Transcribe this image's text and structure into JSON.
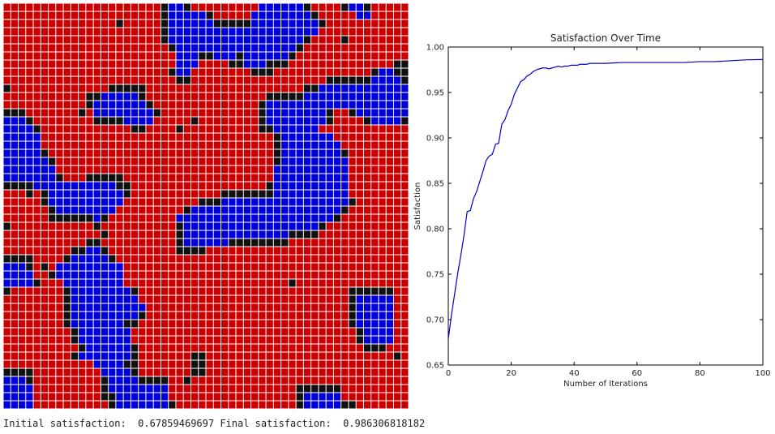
{
  "colors": {
    "red": "#cc0000",
    "blue": "#0000dd",
    "black": "#111111",
    "grid_line": "#ffffff",
    "line": "#0000cc"
  },
  "grid": {
    "rows": [
      "RRRRRRRRRRRRRRRRRRRRRKBBKRRRRRRRRRBBBBBBKRRRRKBBKRRRRR",
      "RRRRRRRRRRRRRRRRRRRRRKBBBBBKRRRRRBBBBBBBBKRRRRRBBRRRRR",
      "RRRRRRRRRRRRRRRKRRRRRKBBBBBBKKKKKBBBBBBBBBKRRRRRRRRRRR",
      "RRRRRRRRRRRRRRRRRRRRRKBBBBBBBBBBBBBBBBBBBBRRRRRRRRRRRR",
      "RRRRRRRRRRRRRRRRRRRRRKBBBBBBBBBBBBBBBBBBKRRRRKRRRRRRRR",
      "RRRRRRRRRRRRRRRRRRRRRRKBBBBBBBBBBBBBBBBKRRRRRRRRRRRRRR",
      "RRRRRRRRRRRRRRRRRRRRRRRBBBKKBBBKBBBBBBKRRRRRRRRRRRRRRR",
      "RRRRRRRRRRRRRRRRRRRRRRRBBBRRRRKKBBBKKKRRRRRRRRRRRRRRKK",
      "RRRRRRRRRRRRRRRRRRRRRRKBBRRRRRRRRKKKRRRRRRRRRRRRRKBBKK",
      "RRRRRRRRRRRRRRRRRRRRRRRKKRRRRRRRRRRRRRRRRRRKKKKKKBBBBK",
      "KRRRRRRRRRRRRRKKKKKRRRRRRRRRRRRRRRRRRRRRKKBBBBBBBBBBBB",
      "RRRRRRRRRRRKKBBBBBKRRRRRRRRRRRRRRRRKKKKKBBBBBBBBBBBBBB",
      "RRRRRRRRRRRKBBBBBBBKRRRRRRRRRRRRRRKBBBBBBBBBBBBBBBBBBB",
      "KKKRRRRRRRKRBBBBBBBBKRRRRRRRRRRRRRKBBBBBBBBKRRKBBBBBBB",
      "BBBKRRRRRRRRKKKKBBBBRRRRRKRRRRRRRRKBBBBBBBBKRRRRKBBBBK",
      "BBBBKRRRRRRRRRRRRKKRRRRKRRRRRRRRRRKKBBBBBBRRRRRRRRRRRR",
      "BBBBBRRRRRRRRRRRRRRRRRRRRRRRRRRRRRRRKBBBBBBBRRRRRRRRRR",
      "BBBBBRRRRRRRRRRRRRRRRRRRRRRRRRRRRRRRKBBBBBBBBRRRRRRRRR",
      "BBBBBKRRRRRRRRRRRRRRRRRRRRRRRRRRRRRRKBBBBBBBBKRRRRRRRR",
      "BBBBBBKRRRRRRRRRRRRRRRRRRRRRRRRRRRRRKBBBBBBBBBRRRRRRRR",
      "BBBBBBBRRRRRRRRRRRRRRRRRRRRRRRRRRRRRBBBBBBBBBBRRRRRRRR",
      "BBBBBBBKRRRKKKKKRRRRRRRRRRRRRRRRRRRRBBBBBBBBBBRRRRRRRR",
      "KKKKBBBBBBBBBBBKKRRRRRRRRRRRRRRRRRRKBBBBBBBBBBRRRRRRRR",
      "RRRKRKBBBBBBBBBBKRRRRRRRRRRRRKKKKKKKBBBBBBBBBBRRRRRRRR",
      "RRRRRKBBBBBBBBBBRRRRRRRRRRKKKBBBBBBBBBBBBBBBBBKRRRRRRR",
      "RRRRRRKBBBBBBBBRRRRRRRRRKBBBBBBBBBBBBBBBBBBBBKRRRRRRRR",
      "RRRRRRKKKKKKBKRRRRRRRRRBBBBBBBBBBBBBBBBBBBBBKRRRRRRRRR",
      "KRRRRRRRRRRRKRRRRRRRRRRKBBBBBBBBBBBBBBBBBBKRRRRRRRRRRR",
      "RRRRRRRRRRRRRKRRRRRRRRRKBBBBBBBBBBBBBBKKKKRRRRRRRRRRRR",
      "RRRRRRRRRRRKKRRRRRRRRRRKBBBBBBKKKKKKKKRRRRRRRRRRRRRRRR",
      "RRRRRRRRRKKBBKRRRRRRRRRKKKKRRRRRRRRRRRRRRRRRRRRRRRRRRR",
      "KKKKRRRRKBBBBBKRRRRRRRRRRRRRRRRRRRRRRRRRRRRRRRRRRRRRRR",
      "BBBKRKRBBBBBBBBBRRRRRRRRRRRRRRRRRRRRRRRRRRRRRRRRRRRRRR",
      "BBBBRRKBBBBBBBBBRRRRRRRRRRRRRRRRRRRRRRRRRRRRRRRRRRRRRR",
      "BBBBKRRRBBBBBBBBRRRRRRRRRRRRRRRRRRRRRRKRRRRRRRRRRRRRRR",
      "KRRRRRRRKBBBBBBBBKRRRRRRRRRRRRRRRRRRRRRRRRRRRRKKKKKKRR",
      "RRRRRRRRKBBBBBBBBBRRRRRRRRRRRRRRRRRRRRRRRRRRRRKBBBBBRR",
      "RRRRRRRRKBBBBBBBBBBRRRRRRRRRRRRRRRRRRRRRRRRRRRKBBBBBRR",
      "RRRRRRRRKBBBBBBBBBKRRRRRRRRRRRRRRRRRRRRRRRRRRRKBBBBBRR",
      "RRRRRRRRKBBBBBBBKKRRRRRRRRRRRRRRRRRRRRRRRRRRRRKBBBBBRR",
      "RRRRRRRRRKBBBBBBBRRRRRRRRRRRRRRRRRRRRRRRRRRRRRRKBBBBRR",
      "RRRRRRRRRKBBBBBBBRRRRRRRRRRRRRRRRRRRRRRRRRRRRRRKBBBBRR",
      "RRRRRRRRRRKBBBBBBKRRRRRRRRRRRRRRRRRRRRRRRRRRRRRRKKKRRR",
      "RRRRRRRRRKBBBBBBBKRRRRRRRKKRRRRRRRRRRRRRRRRRRRRRRRRRKR",
      "RRRRRRRRRRRRBBBBKKRRRRRRRKKRRRRRRRRRRRRRRRRRRRRRRRRRRR",
      "KKKKRRRRRRRRRBBBBKRRRRRRRKKRRRRRRRRRRRRRRRRRRRRRRRRRRR",
      "BBBKRRRRRRRRRKBBBBKKKKRRKRRRRRRRRRRRRRRRRRRRRRRRRRRRRR",
      "BBBBRRRRRRRRRKBBBBBBBBRRRRRRRRRRRRRRRRRKKKKKKRRRRRRRRR",
      "BBBBRRRRRRRRRKKBBBBBBBRRRRRRRRRRRRRRRRRKBBBBBRRRRRRRRR",
      "BBBBRRRRRRRRRRKBBBBBBBKRRRRRRRRRRRRRRRRKBBBBBKKRRRRRRR"
    ]
  },
  "chart_data": {
    "type": "line",
    "title": "Satisfaction Over Time",
    "xlabel": "Number of Iterations",
    "ylabel": "Satisfaction",
    "xlim": [
      0,
      100
    ],
    "ylim": [
      0.65,
      1.0
    ],
    "xticks": [
      0,
      20,
      40,
      60,
      80,
      100
    ],
    "yticks": [
      0.65,
      0.7,
      0.75,
      0.8,
      0.85,
      0.9,
      0.95,
      1.0
    ],
    "xtick_labels": [
      "0",
      "20",
      "40",
      "60",
      "80",
      "100"
    ],
    "ytick_labels": [
      "0.65",
      "0.70",
      "0.75",
      "0.80",
      "0.85",
      "0.90",
      "0.95",
      "1.00"
    ],
    "grid": false,
    "series": [
      {
        "x": [
          0,
          1,
          2,
          3,
          4,
          5,
          6,
          7,
          8,
          9,
          10,
          11,
          12,
          13,
          14,
          15,
          16,
          17,
          18,
          19,
          20,
          21,
          22,
          23,
          24,
          25,
          26,
          27,
          28,
          29,
          30,
          31,
          32,
          33,
          34,
          35,
          36,
          37,
          38,
          39,
          40,
          41,
          42,
          43,
          44,
          45,
          46,
          47,
          48,
          49,
          50,
          55,
          60,
          65,
          70,
          75,
          80,
          85,
          90,
          95,
          100
        ],
        "y": [
          0.6786,
          0.705,
          0.728,
          0.751,
          0.771,
          0.793,
          0.819,
          0.82,
          0.833,
          0.841,
          0.852,
          0.863,
          0.875,
          0.88,
          0.882,
          0.893,
          0.894,
          0.915,
          0.92,
          0.93,
          0.937,
          0.948,
          0.955,
          0.962,
          0.964,
          0.968,
          0.97,
          0.973,
          0.975,
          0.976,
          0.977,
          0.977,
          0.976,
          0.977,
          0.978,
          0.979,
          0.978,
          0.979,
          0.979,
          0.98,
          0.98,
          0.98,
          0.981,
          0.981,
          0.981,
          0.982,
          0.982,
          0.982,
          0.982,
          0.982,
          0.982,
          0.983,
          0.983,
          0.983,
          0.983,
          0.983,
          0.984,
          0.984,
          0.985,
          0.986,
          0.9863
        ]
      }
    ]
  },
  "status": {
    "initial_label": "Initial satisfaction:",
    "initial_value": "0.67859469697",
    "final_label": "Final satisfaction:",
    "final_value": "0.986306818182"
  }
}
